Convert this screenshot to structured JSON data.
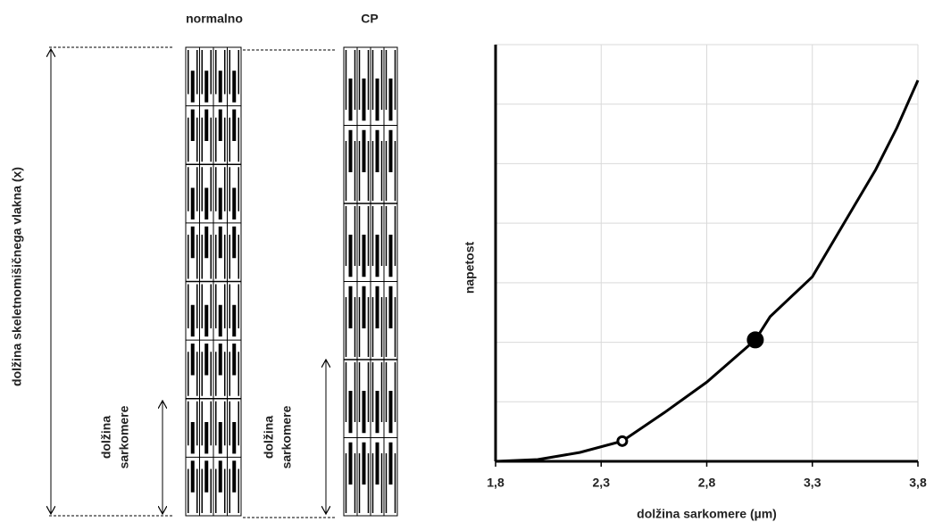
{
  "diagram": {
    "title_normal": "normalno",
    "title_cp": "CP",
    "fiber_length": "dolžina skeletnomišičnega vlakna (x)",
    "sarcomere_normal": [
      "dolžina",
      "sarkomere"
    ],
    "sarcomere_cp": [
      "dolžina",
      "sarkomere"
    ]
  },
  "chart_data": {
    "type": "line",
    "x_label": "dolžina sarkomere (µm)",
    "y_label": "napetost",
    "xlim": [
      1.8,
      3.8
    ],
    "xticks": [
      {
        "value": 1.8,
        "label": "1,8"
      },
      {
        "value": 2.3,
        "label": "2,3"
      },
      {
        "value": 2.8,
        "label": "2,8"
      },
      {
        "value": 3.3,
        "label": "3,3"
      },
      {
        "value": 3.8,
        "label": "3,8"
      }
    ],
    "ylim": [
      0,
      7
    ],
    "yticks": [
      0,
      1,
      2,
      3,
      4,
      5,
      6,
      7
    ],
    "grid": true,
    "series": [
      {
        "color": "#000000",
        "x": [
          1.8,
          2.0,
          2.2,
          2.4,
          2.6,
          2.8,
          3.03,
          3.1,
          3.3,
          3.5,
          3.6,
          3.7,
          3.8
        ],
        "y": [
          0,
          0.03,
          0.15,
          0.34,
          0.82,
          1.33,
          2.04,
          2.43,
          3.1,
          4.3,
          4.9,
          5.6,
          6.4
        ]
      },
      {
        "color": "#000000",
        "marker": "open",
        "x": [
          2.4
        ],
        "y": [
          0.34
        ]
      },
      {
        "color": "#000000",
        "marker": "filled",
        "x": [
          3.03
        ],
        "y": [
          2.04
        ]
      }
    ]
  }
}
